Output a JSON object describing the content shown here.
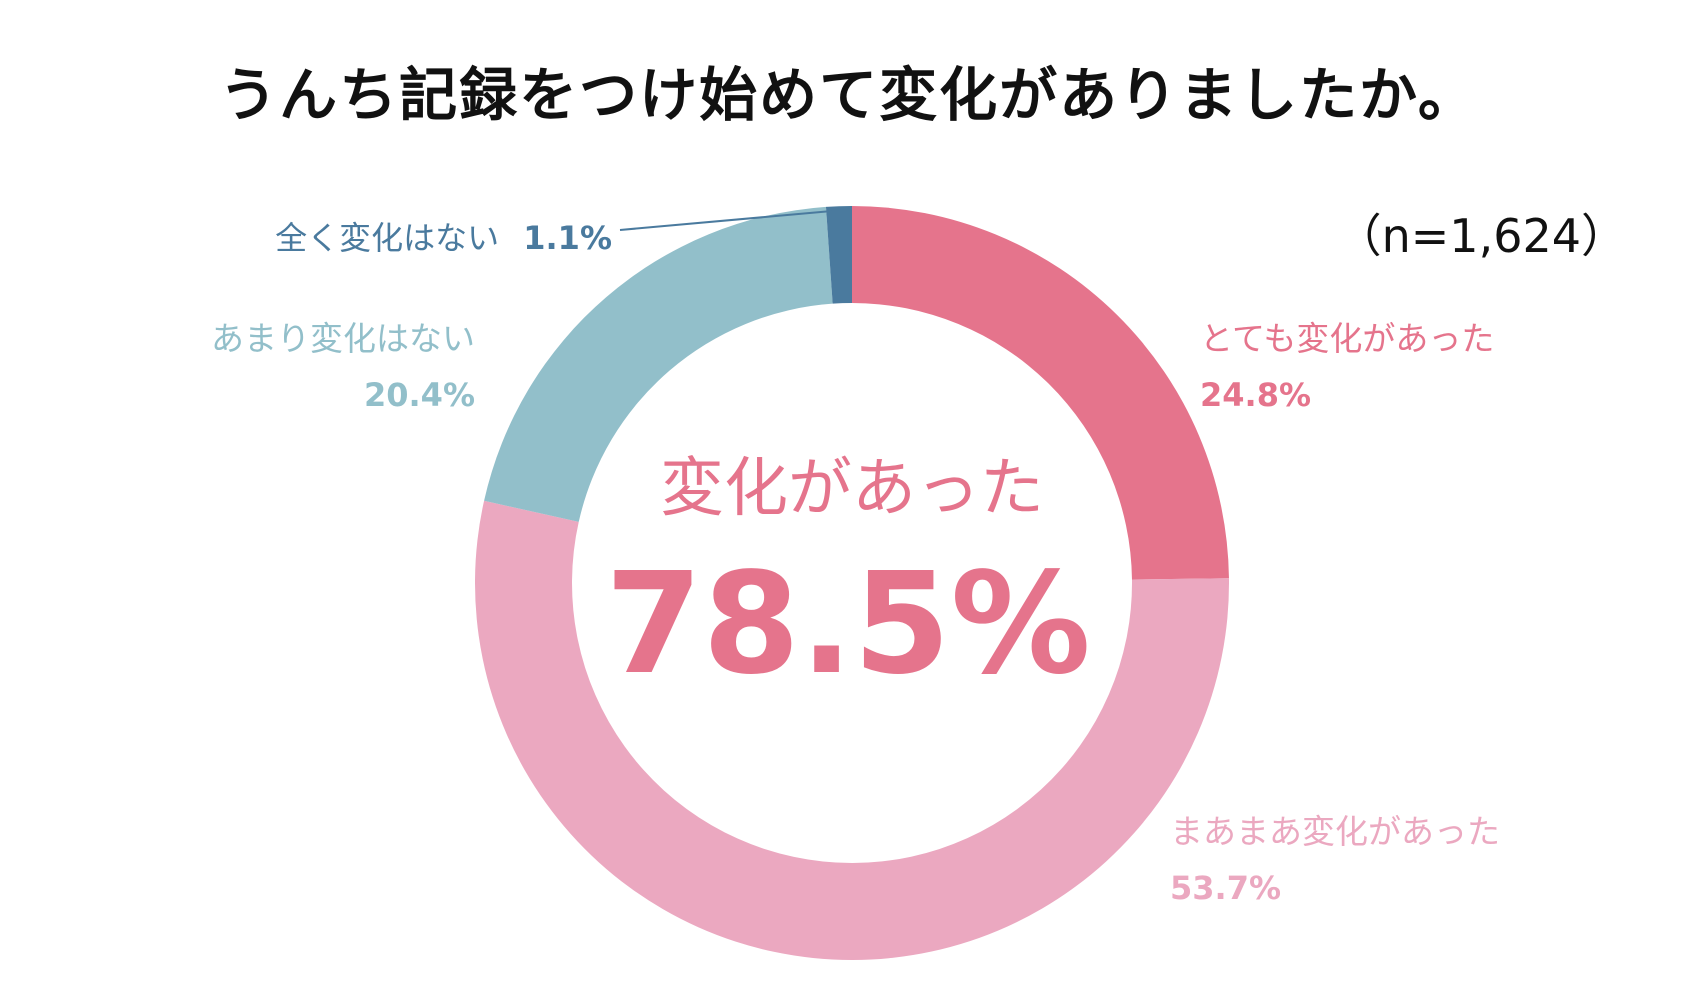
{
  "title": "うんち記録をつけ始めて変化がありましたか。",
  "sample_size": "（n=1,624）",
  "colors": {
    "very_changed": "#e5748c",
    "somewhat_changed": "#eba8c0",
    "not_much": "#92bfca",
    "none": "#4a7a9e",
    "center_text": "#e5748c"
  },
  "chart_data": {
    "type": "pie",
    "donut": true,
    "start_angle_deg": 0,
    "direction": "clockwise",
    "slices": [
      {
        "label": "とても変化があった",
        "value": 24.8,
        "value_label": "24.8%",
        "color": "#e5748c"
      },
      {
        "label": "まあまあ変化があった",
        "value": 53.7,
        "value_label": "53.7%",
        "color": "#eba8c0"
      },
      {
        "label": "あまり変化はない",
        "value": 20.4,
        "value_label": "20.4%",
        "color": "#92bfca"
      },
      {
        "label": "全く変化はない",
        "value": 1.1,
        "value_label": "1.1%",
        "color": "#4a7a9e"
      }
    ],
    "center_label": "変化があった",
    "center_value": "78.5%"
  }
}
